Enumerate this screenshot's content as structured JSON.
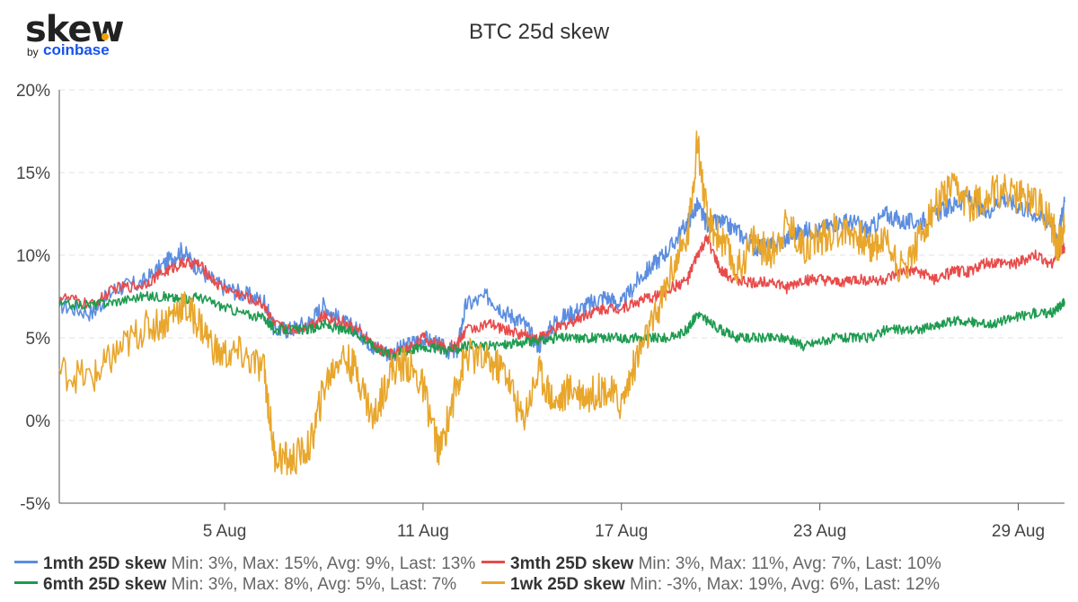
{
  "logo": {
    "word": "skew",
    "by": "by",
    "brand": "coinbase",
    "dot_color": "#f0a202",
    "brand_color": "#1652f0"
  },
  "chart_data": {
    "type": "line",
    "title": "BTC 25d skew",
    "xlabel": "",
    "ylabel": "",
    "x_range": [
      0,
      30.4
    ],
    "x_ticks": [
      {
        "x": 5,
        "label": "5 Aug"
      },
      {
        "x": 11,
        "label": "11 Aug"
      },
      {
        "x": 17,
        "label": "17 Aug"
      },
      {
        "x": 23,
        "label": "23 Aug"
      },
      {
        "x": 29,
        "label": "29 Aug"
      }
    ],
    "ylim": [
      -5,
      20
    ],
    "y_ticks": [
      {
        "y": -5,
        "label": "-5%"
      },
      {
        "y": 0,
        "label": "0%"
      },
      {
        "y": 5,
        "label": "5%"
      },
      {
        "y": 10,
        "label": "10%"
      },
      {
        "y": 15,
        "label": "15%"
      },
      {
        "y": 20,
        "label": "20%"
      }
    ],
    "grid": true,
    "series": [
      {
        "name": "1mth 25D skew",
        "color": "#5b8de0",
        "stats": "Min: 3%, Max: 15%, Avg: 9%, Last: 13%",
        "points": [
          [
            0,
            7
          ],
          [
            1,
            6.5
          ],
          [
            1.7,
            8
          ],
          [
            2.5,
            8.3
          ],
          [
            3.2,
            9.5
          ],
          [
            3.7,
            10.3
          ],
          [
            4.2,
            9.2
          ],
          [
            4.8,
            8.2
          ],
          [
            5.5,
            7.7
          ],
          [
            6.2,
            7.2
          ],
          [
            6.5,
            5.5
          ],
          [
            7,
            5.5
          ],
          [
            7.6,
            6
          ],
          [
            8,
            7
          ],
          [
            8.5,
            6
          ],
          [
            9,
            5.5
          ],
          [
            9.5,
            4.5
          ],
          [
            10,
            4
          ],
          [
            10.5,
            4.5
          ],
          [
            11,
            5
          ],
          [
            11.5,
            4.5
          ],
          [
            12,
            4
          ],
          [
            12.3,
            7
          ],
          [
            13,
            7.5
          ],
          [
            13.5,
            6.5
          ],
          [
            14,
            6
          ],
          [
            14.5,
            4.5
          ],
          [
            15,
            6
          ],
          [
            15.5,
            6.5
          ],
          [
            16,
            7
          ],
          [
            16.5,
            7.5
          ],
          [
            17,
            7
          ],
          [
            17.5,
            8.5
          ],
          [
            18,
            9.5
          ],
          [
            18.5,
            10.5
          ],
          [
            19,
            12
          ],
          [
            19.3,
            13
          ],
          [
            19.6,
            11.8
          ],
          [
            20,
            12
          ],
          [
            20.5,
            11.5
          ],
          [
            21,
            10.5
          ],
          [
            21.5,
            10.5
          ],
          [
            22,
            11
          ],
          [
            22.5,
            11.5
          ],
          [
            23,
            11.5
          ],
          [
            23.5,
            12
          ],
          [
            24,
            12
          ],
          [
            24.5,
            11.5
          ],
          [
            25,
            12.5
          ],
          [
            25.5,
            12
          ],
          [
            26,
            12
          ],
          [
            26.5,
            12.5
          ],
          [
            27,
            13
          ],
          [
            27.5,
            13.5
          ],
          [
            28,
            12.5
          ],
          [
            28.5,
            13.5
          ],
          [
            29,
            13
          ],
          [
            29.5,
            12.5
          ],
          [
            30,
            12
          ],
          [
            30.2,
            11
          ],
          [
            30.4,
            13.2
          ]
        ]
      },
      {
        "name": "3mth 25D skew",
        "color": "#e84b4b",
        "stats": "Min: 3%, Max: 11%, Avg: 7%, Last: 10%",
        "points": [
          [
            0,
            7.5
          ],
          [
            1,
            7
          ],
          [
            1.7,
            8
          ],
          [
            2.5,
            8.2
          ],
          [
            3.2,
            9
          ],
          [
            3.7,
            9.5
          ],
          [
            4.2,
            9.5
          ],
          [
            4.8,
            8.2
          ],
          [
            5.5,
            7.6
          ],
          [
            6.2,
            7
          ],
          [
            6.5,
            5.8
          ],
          [
            7,
            5.5
          ],
          [
            7.6,
            5.8
          ],
          [
            8,
            6.3
          ],
          [
            8.5,
            6
          ],
          [
            9,
            5.5
          ],
          [
            9.5,
            4.5
          ],
          [
            10,
            4
          ],
          [
            10.5,
            4.3
          ],
          [
            11,
            5
          ],
          [
            11.5,
            4.5
          ],
          [
            12,
            4.5
          ],
          [
            12.3,
            5.5
          ],
          [
            13,
            5.8
          ],
          [
            13.5,
            5.5
          ],
          [
            14,
            5.2
          ],
          [
            14.5,
            5
          ],
          [
            15,
            5.5
          ],
          [
            15.5,
            6
          ],
          [
            16,
            6.5
          ],
          [
            16.5,
            6.8
          ],
          [
            17,
            6.8
          ],
          [
            17.5,
            7.2
          ],
          [
            18,
            7.5
          ],
          [
            18.5,
            8
          ],
          [
            19,
            8.5
          ],
          [
            19.3,
            10
          ],
          [
            19.6,
            11
          ],
          [
            20,
            9
          ],
          [
            20.5,
            8.5
          ],
          [
            21,
            8.3
          ],
          [
            21.5,
            8.5
          ],
          [
            22,
            8
          ],
          [
            22.5,
            8.5
          ],
          [
            23,
            8.5
          ],
          [
            23.5,
            8.3
          ],
          [
            24,
            8.5
          ],
          [
            24.5,
            8.5
          ],
          [
            25,
            8.5
          ],
          [
            25.5,
            9
          ],
          [
            26,
            9
          ],
          [
            26.5,
            8.5
          ],
          [
            27,
            9
          ],
          [
            27.5,
            9
          ],
          [
            28,
            9.5
          ],
          [
            28.5,
            9.5
          ],
          [
            29,
            9.5
          ],
          [
            29.5,
            10
          ],
          [
            30,
            9.5
          ],
          [
            30.2,
            10
          ],
          [
            30.4,
            10.5
          ]
        ]
      },
      {
        "name": "6mth 25D skew",
        "color": "#1e9b50",
        "stats": "Min: 3%, Max: 8%, Avg: 5%, Last: 7%",
        "points": [
          [
            0,
            7
          ],
          [
            1,
            7
          ],
          [
            1.7,
            7.2
          ],
          [
            2.5,
            7.5
          ],
          [
            3.2,
            7.5
          ],
          [
            3.7,
            7.3
          ],
          [
            4.2,
            7.5
          ],
          [
            4.8,
            7
          ],
          [
            5.5,
            6.5
          ],
          [
            6.2,
            6.2
          ],
          [
            6.5,
            5.5
          ],
          [
            7,
            5.5
          ],
          [
            7.6,
            5.5
          ],
          [
            8,
            5.8
          ],
          [
            8.5,
            5.5
          ],
          [
            9,
            5.3
          ],
          [
            9.5,
            4.5
          ],
          [
            10,
            4
          ],
          [
            10.5,
            4.2
          ],
          [
            11,
            4.5
          ],
          [
            11.5,
            4.3
          ],
          [
            12,
            4.3
          ],
          [
            12.3,
            4.5
          ],
          [
            13,
            4.5
          ],
          [
            13.5,
            4.6
          ],
          [
            14,
            4.7
          ],
          [
            14.5,
            4.8
          ],
          [
            15,
            5
          ],
          [
            15.5,
            5
          ],
          [
            16,
            5
          ],
          [
            16.5,
            5
          ],
          [
            17,
            5
          ],
          [
            17.5,
            5
          ],
          [
            18,
            5
          ],
          [
            18.5,
            5
          ],
          [
            19,
            5.5
          ],
          [
            19.3,
            6.5
          ],
          [
            19.6,
            6
          ],
          [
            20,
            5.5
          ],
          [
            20.5,
            5
          ],
          [
            21,
            5
          ],
          [
            21.5,
            5
          ],
          [
            22,
            5
          ],
          [
            22.5,
            4.5
          ],
          [
            23,
            4.8
          ],
          [
            23.5,
            5
          ],
          [
            24,
            5
          ],
          [
            24.5,
            5
          ],
          [
            25,
            5.5
          ],
          [
            25.5,
            5.5
          ],
          [
            26,
            5.5
          ],
          [
            26.5,
            5.7
          ],
          [
            27,
            6
          ],
          [
            27.5,
            6
          ],
          [
            28,
            5.8
          ],
          [
            28.5,
            6
          ],
          [
            29,
            6.3
          ],
          [
            29.5,
            6.5
          ],
          [
            30,
            6.5
          ],
          [
            30.2,
            6.8
          ],
          [
            30.4,
            7.2
          ]
        ]
      },
      {
        "name": "1wk 25D skew",
        "color": "#e8a62b",
        "stats": "Min: -3%, Max: 19%, Avg: 6%, Last: 12%",
        "points": [
          [
            0,
            3
          ],
          [
            1,
            2.5
          ],
          [
            1.7,
            4
          ],
          [
            2.5,
            5.5
          ],
          [
            3.2,
            6
          ],
          [
            3.7,
            7
          ],
          [
            4.2,
            6
          ],
          [
            4.8,
            4
          ],
          [
            5.5,
            4
          ],
          [
            6.2,
            3
          ],
          [
            6.5,
            -2
          ],
          [
            7,
            -2.5
          ],
          [
            7.6,
            -1.5
          ],
          [
            8,
            2
          ],
          [
            8.5,
            4
          ],
          [
            9,
            3
          ],
          [
            9.5,
            0
          ],
          [
            10,
            3
          ],
          [
            10.5,
            3.5
          ],
          [
            11,
            2
          ],
          [
            11.5,
            -2
          ],
          [
            12,
            2
          ],
          [
            12.3,
            4
          ],
          [
            13,
            3.5
          ],
          [
            13.5,
            3
          ],
          [
            14,
            0
          ],
          [
            14.5,
            3
          ],
          [
            15,
            1
          ],
          [
            15.5,
            2
          ],
          [
            16,
            1.5
          ],
          [
            16.5,
            2
          ],
          [
            17,
            1
          ],
          [
            17.5,
            4
          ],
          [
            18,
            6
          ],
          [
            18.5,
            9
          ],
          [
            19,
            11
          ],
          [
            19.3,
            17
          ],
          [
            19.6,
            12
          ],
          [
            20,
            11
          ],
          [
            20.5,
            9
          ],
          [
            21,
            11
          ],
          [
            21.5,
            10
          ],
          [
            22,
            12
          ],
          [
            22.5,
            10.5
          ],
          [
            23,
            11
          ],
          [
            23.5,
            11.5
          ],
          [
            24,
            11.5
          ],
          [
            24.5,
            10.5
          ],
          [
            25,
            11
          ],
          [
            25.5,
            9
          ],
          [
            26,
            11
          ],
          [
            26.5,
            13
          ],
          [
            27,
            14
          ],
          [
            27.5,
            13
          ],
          [
            28,
            13.5
          ],
          [
            28.5,
            14
          ],
          [
            29,
            13.5
          ],
          [
            29.5,
            13.5
          ],
          [
            30,
            12
          ],
          [
            30.2,
            10.5
          ],
          [
            30.4,
            11.8
          ]
        ]
      }
    ]
  }
}
